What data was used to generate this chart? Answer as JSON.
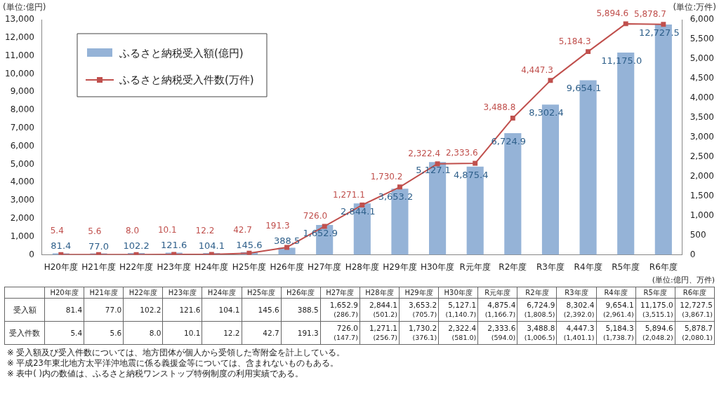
{
  "chart_data": {
    "type": "bar",
    "ylabel": "(単位:億円)",
    "y2label": "(単位:万件)",
    "categories": [
      "H20年度",
      "H21年度",
      "H22年度",
      "H23年度",
      "H24年度",
      "H25年度",
      "H26年度",
      "H27年度",
      "H28年度",
      "H29年度",
      "H30年度",
      "R元年度",
      "R2年度",
      "R3年度",
      "R4年度",
      "R5年度",
      "R6年度"
    ],
    "series": [
      {
        "name": "ふるさと納税受入額(億円)",
        "color": "#95b3d7",
        "values": [
          81.4,
          77.0,
          102.2,
          121.6,
          104.1,
          145.6,
          388.5,
          1652.9,
          2844.1,
          3653.2,
          5127.1,
          4875.4,
          6724.9,
          8302.4,
          9654.1,
          11175.0,
          12727.5
        ],
        "value_labels": [
          "81.4",
          "77.0",
          "102.2",
          "121.6",
          "104.1",
          "145.6",
          "388.5",
          "1,652.9",
          "2,844.1",
          "3,653.2",
          "5,127.1",
          "4,875.4",
          "6,724.9",
          "8,302.4",
          "9,654.1",
          "11,175.0",
          "12,727.5"
        ]
      },
      {
        "name": "ふるさと納税受入件数(万件)",
        "type": "line",
        "axis": "y2",
        "color": "#c0504d",
        "values": [
          5.4,
          5.6,
          8.0,
          10.1,
          12.2,
          42.7,
          191.3,
          726.0,
          1271.1,
          1730.2,
          2322.4,
          2333.6,
          3488.8,
          4447.3,
          5184.3,
          5894.6,
          5878.7
        ],
        "value_labels": [
          "5.4",
          "5.6",
          "8.0",
          "10.1",
          "12.2",
          "42.7",
          "191.3",
          "726.0",
          "1,271.1",
          "1,730.2",
          "2,322.4",
          "2,333.6",
          "3,488.8",
          "4,447.3",
          "5,184.3",
          "5,894.6",
          "5,878.7"
        ]
      }
    ],
    "ylim": [
      0,
      13000
    ],
    "yticks": [
      0,
      {
        "value": 1000,
        "label": "1,000"
      },
      {
        "value": 2000,
        "label": "2,000"
      },
      {
        "value": 3000,
        "label": "3,000"
      },
      {
        "value": 4000,
        "label": "4,000"
      },
      {
        "value": 5000,
        "label": "5,000"
      },
      {
        "value": 6000,
        "label": "6,000"
      },
      {
        "value": 7000,
        "label": "7,000"
      },
      {
        "value": 8000,
        "label": "8,000"
      },
      {
        "value": 9000,
        "label": "9,000"
      },
      {
        "value": 10000,
        "label": "10,000"
      },
      {
        "value": 11000,
        "label": "11,000"
      },
      {
        "value": 12000,
        "label": "12,000"
      },
      {
        "value": 13000,
        "label": "13,000"
      }
    ],
    "y2lim": [
      0,
      6000
    ],
    "y2ticks": [
      0,
      500,
      {
        "value": 1000,
        "label": "1,000"
      },
      {
        "value": 1500,
        "label": "1,500"
      },
      {
        "value": 2000,
        "label": "2,000"
      },
      {
        "value": 2500,
        "label": "2,500"
      },
      {
        "value": 3000,
        "label": "3,000"
      },
      {
        "value": 3500,
        "label": "3,500"
      },
      {
        "value": 4000,
        "label": "4,000"
      },
      {
        "value": 4500,
        "label": "4,500"
      },
      {
        "value": 5000,
        "label": "5,000"
      },
      {
        "value": 5500,
        "label": "5,500"
      },
      {
        "value": 6000,
        "label": "6,000"
      }
    ],
    "legend": "top left",
    "marker": "square",
    "annotations": [
      "(単位:億円、万件)",
      "受入額",
      "受入件数",
      "※ 受入額及び受入件数については、地方団体が個人から受領した寄附金を計上している。",
      "※ 平成23年東北地方太平洋沖地震に係る義援金等については、含まれないものもある。",
      "※ 表中( )内の数値は、ふるさと納税ワンストップ特例制度の利用実績である。",
      "(286.7)",
      "(501.2)",
      "(705.7)",
      "(1,140.7)",
      "(1,166.7)",
      "(1,808.5)",
      "(2,392.0)",
      "(2,961.4)",
      "(3,515.1)",
      "(3,867.1)",
      "(147.7)",
      "(256.7)",
      "(376.1)",
      "(581.0)",
      "(594.0)",
      "(1,006.5)",
      "(1,401.1)",
      "(1,738.7)",
      "(2,048.2)",
      "(2,080.1)"
    ]
  }
}
